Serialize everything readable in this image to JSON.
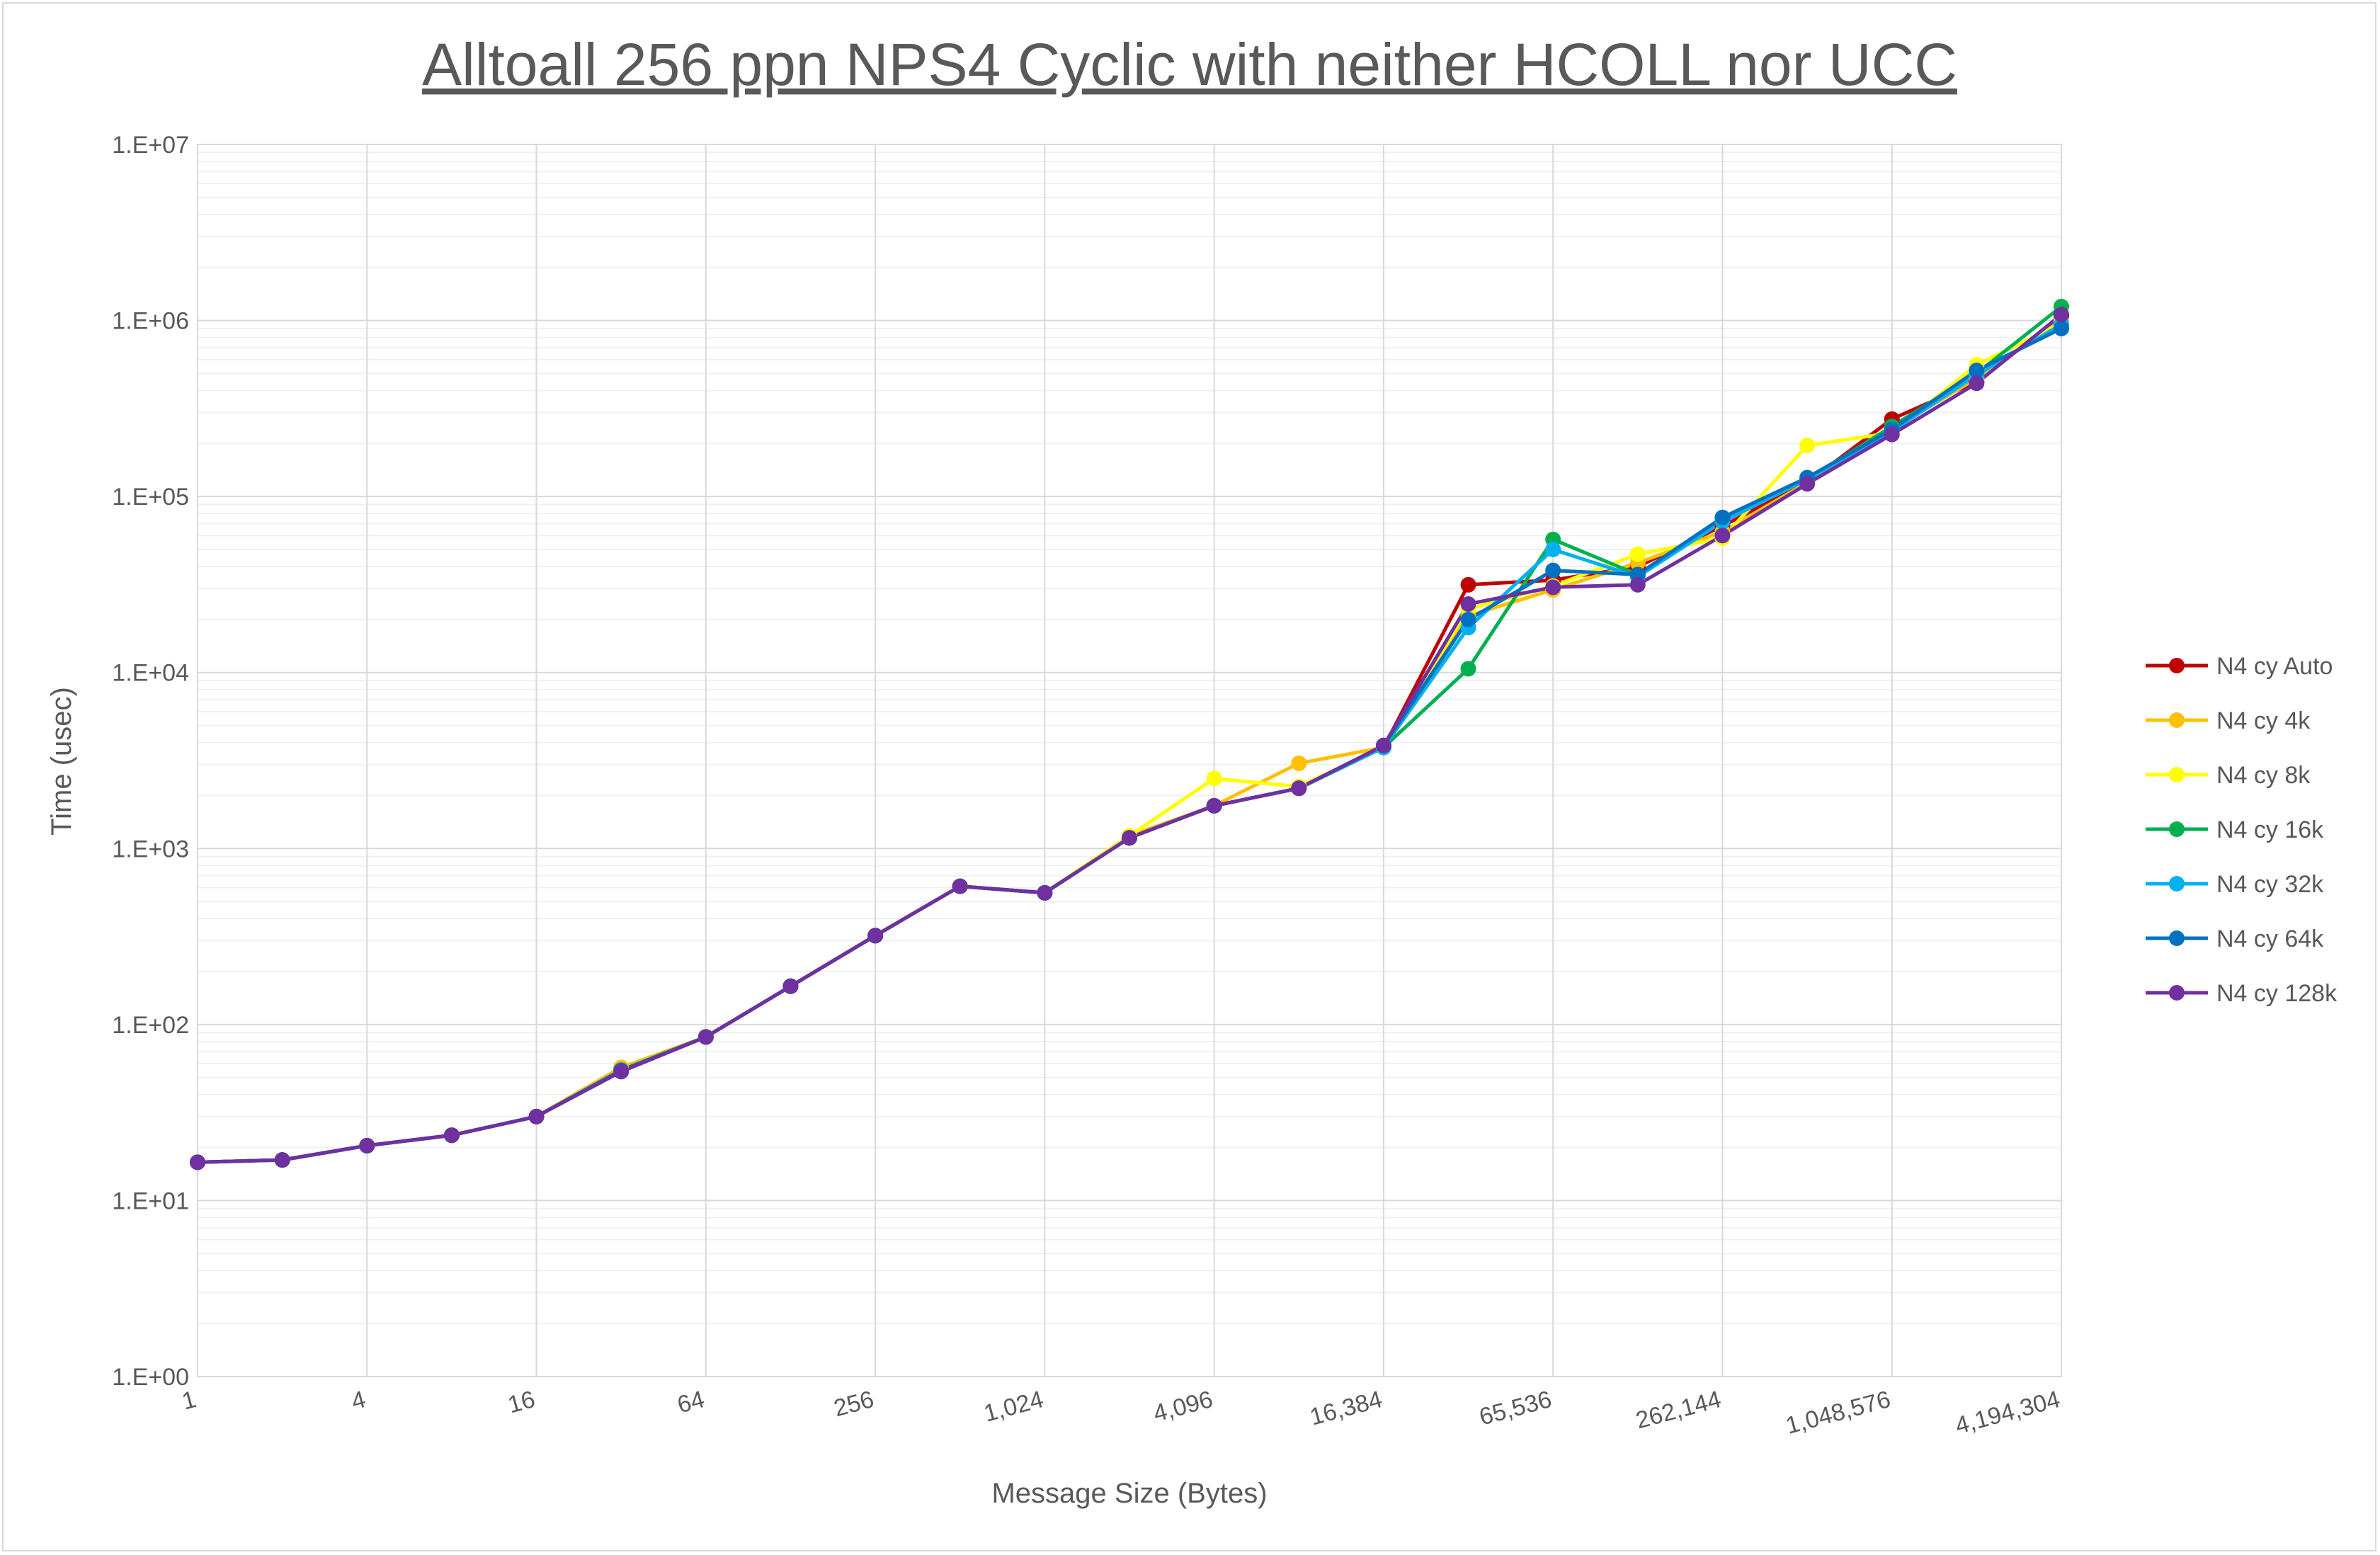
{
  "chart_data": {
    "type": "line",
    "title": "Alltoall 256 ppn NPS4 Cyclic with neither HCOLL nor UCC",
    "xlabel": "Message Size (Bytes)",
    "ylabel": "Time (usec)",
    "x_scale": "log2",
    "y_scale": "log10",
    "x": [
      1,
      2,
      4,
      8,
      16,
      32,
      64,
      128,
      256,
      512,
      1024,
      2048,
      4096,
      8192,
      16384,
      32768,
      65536,
      131072,
      262144,
      524288,
      1048576,
      2097152,
      4194304
    ],
    "x_tick_values": [
      1,
      4,
      16,
      64,
      256,
      1024,
      4096,
      16384,
      65536,
      262144,
      1048576,
      4194304
    ],
    "x_tick_labels": [
      "1",
      "4",
      "16",
      "64",
      "256",
      "1,024",
      "4,096",
      "16,384",
      "65,536",
      "262,144",
      "1,048,576",
      "4,194,304"
    ],
    "ylim": [
      1,
      10000000
    ],
    "y_tick_values": [
      1,
      10,
      100,
      1000,
      10000,
      100000,
      1000000,
      10000000
    ],
    "y_tick_labels": [
      "1.E+00",
      "1.E+01",
      "1.E+02",
      "1.E+03",
      "1.E+04",
      "1.E+05",
      "1.E+06",
      "1.E+07"
    ],
    "grid": true,
    "minor_grid": true,
    "legend_position": "right",
    "series": [
      {
        "name": "N4 cy Auto",
        "color": "#c00000",
        "values": [
          16.5,
          17,
          20.5,
          23.5,
          30,
          55,
          85,
          165,
          320,
          610,
          560,
          1150,
          1750,
          2200,
          3750,
          31500,
          33500,
          40000,
          68000,
          120000,
          275000,
          450000,
          1050000
        ]
      },
      {
        "name": "N4 cy 4k",
        "color": "#ffc000",
        "values": [
          16.5,
          17,
          20.5,
          23.5,
          30,
          57,
          85,
          165,
          320,
          610,
          560,
          1180,
          1750,
          3050,
          3750,
          21000,
          29500,
          42000,
          63000,
          120000,
          240000,
          470000,
          1000000
        ]
      },
      {
        "name": "N4 cy 8k",
        "color": "#ffff00",
        "values": [
          16.5,
          17,
          20.5,
          23.5,
          30,
          55,
          85,
          165,
          320,
          610,
          560,
          1180,
          2500,
          2250,
          3750,
          23000,
          31000,
          47000,
          58000,
          195000,
          230000,
          560000,
          960000
        ]
      },
      {
        "name": "N4 cy 16k",
        "color": "#00b050",
        "values": [
          16.5,
          17,
          20.5,
          23.5,
          30,
          55,
          85,
          165,
          320,
          610,
          560,
          1150,
          1750,
          2200,
          3750,
          10500,
          57000,
          36000,
          73000,
          125000,
          250000,
          500000,
          1200000
        ]
      },
      {
        "name": "N4 cy 32k",
        "color": "#00b0f0",
        "values": [
          16.5,
          17,
          20.5,
          23.5,
          30,
          55,
          85,
          165,
          320,
          610,
          560,
          1150,
          1750,
          2200,
          3750,
          18000,
          50000,
          35000,
          72000,
          125000,
          235000,
          490000,
          950000
        ]
      },
      {
        "name": "N4 cy 64k",
        "color": "#0070c0",
        "values": [
          16.5,
          17,
          20.5,
          23.5,
          30,
          55,
          85,
          165,
          320,
          610,
          560,
          1150,
          1750,
          2200,
          3850,
          20000,
          38000,
          36000,
          76000,
          128000,
          240000,
          520000,
          900000
        ]
      },
      {
        "name": "N4 cy 128k",
        "color": "#7030a0",
        "values": [
          16.5,
          17,
          20.5,
          23.5,
          30,
          54,
          85,
          165,
          320,
          610,
          560,
          1150,
          1750,
          2200,
          3850,
          24500,
          30500,
          31500,
          60000,
          118000,
          225000,
          440000,
          1080000
        ]
      }
    ]
  }
}
